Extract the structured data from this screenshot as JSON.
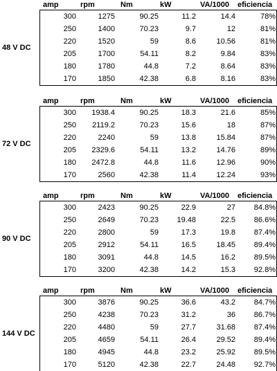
{
  "tables": [
    {
      "label": "48 V DC",
      "header": [
        "amp",
        "rpm",
        "Nm",
        "kW",
        "VA/1000",
        "eficiencia"
      ],
      "rows": [
        [
          "300",
          "1275",
          "90.25",
          "11.2",
          "14.4",
          "78%"
        ],
        [
          "250",
          "1400",
          "70.23",
          "9.7",
          "12",
          "81%"
        ],
        [
          "220",
          "1520",
          "59",
          "8.6",
          "10.56",
          "81%"
        ],
        [
          "205",
          "1700",
          "54.11",
          "8.2",
          "9.84",
          "83%"
        ],
        [
          "180",
          "1780",
          "44.8",
          "7.2",
          "8.64",
          "83%"
        ],
        [
          "170",
          "1850",
          "42.38",
          "6.8",
          "8.16",
          "83%"
        ]
      ]
    },
    {
      "label": "72 V DC",
      "header": [
        "amp",
        "rpm",
        "Nm",
        "kW",
        "VA/1000",
        "eficiencia"
      ],
      "rows": [
        [
          "300",
          "1938.4",
          "90.25",
          "18.3",
          "21.6",
          "85%"
        ],
        [
          "250",
          "2119.2",
          "70.23",
          "15.6",
          "18",
          "87%"
        ],
        [
          "220",
          "2240",
          "59",
          "13.8",
          "15.84",
          "87%"
        ],
        [
          "205",
          "2329.6",
          "54.11",
          "13.2",
          "14.76",
          "89%"
        ],
        [
          "180",
          "2472.8",
          "44.8",
          "11.6",
          "12.96",
          "90%"
        ],
        [
          "170",
          "2560",
          "42.38",
          "11.4",
          "12.24",
          "93%"
        ]
      ]
    },
    {
      "label": "90 V DC",
      "header": [
        "amp",
        "rpm",
        "Nm",
        "kW",
        "VA/1000",
        "eficiencia"
      ],
      "rows": [
        [
          "300",
          "2423",
          "90.25",
          "22.9",
          "27",
          "84.8%"
        ],
        [
          "250",
          "2649",
          "70.23",
          "19.48",
          "22.5",
          "86.6%"
        ],
        [
          "220",
          "2800",
          "59",
          "17.3",
          "19.8",
          "87.4%"
        ],
        [
          "205",
          "2912",
          "54.11",
          "16.5",
          "18.45",
          "89.4%"
        ],
        [
          "180",
          "3091",
          "44.8",
          "14.5",
          "16.2",
          "89.5%"
        ],
        [
          "170",
          "3200",
          "42.38",
          "14.2",
          "15.3",
          "92.8%"
        ]
      ]
    },
    {
      "label": "144 V DC",
      "header": [
        "amp",
        "rpm",
        "Nm",
        "kW",
        "VA/1000",
        "eficiencia"
      ],
      "rows": [
        [
          "300",
          "3876",
          "90.25",
          "36.6",
          "43.2",
          "84.7%"
        ],
        [
          "250",
          "4238",
          "70.23",
          "31.2",
          "36",
          "86.7%"
        ],
        [
          "220",
          "4480",
          "59",
          "27.7",
          "31.68",
          "87.4%"
        ],
        [
          "205",
          "4659",
          "54.11",
          "26.4",
          "29.52",
          "89.4%"
        ],
        [
          "180",
          "4945",
          "44.8",
          "23.2",
          "25.92",
          "89.5%"
        ],
        [
          "170",
          "5120",
          "42.38",
          "22.7",
          "24.48",
          "92.7%"
        ]
      ]
    }
  ]
}
